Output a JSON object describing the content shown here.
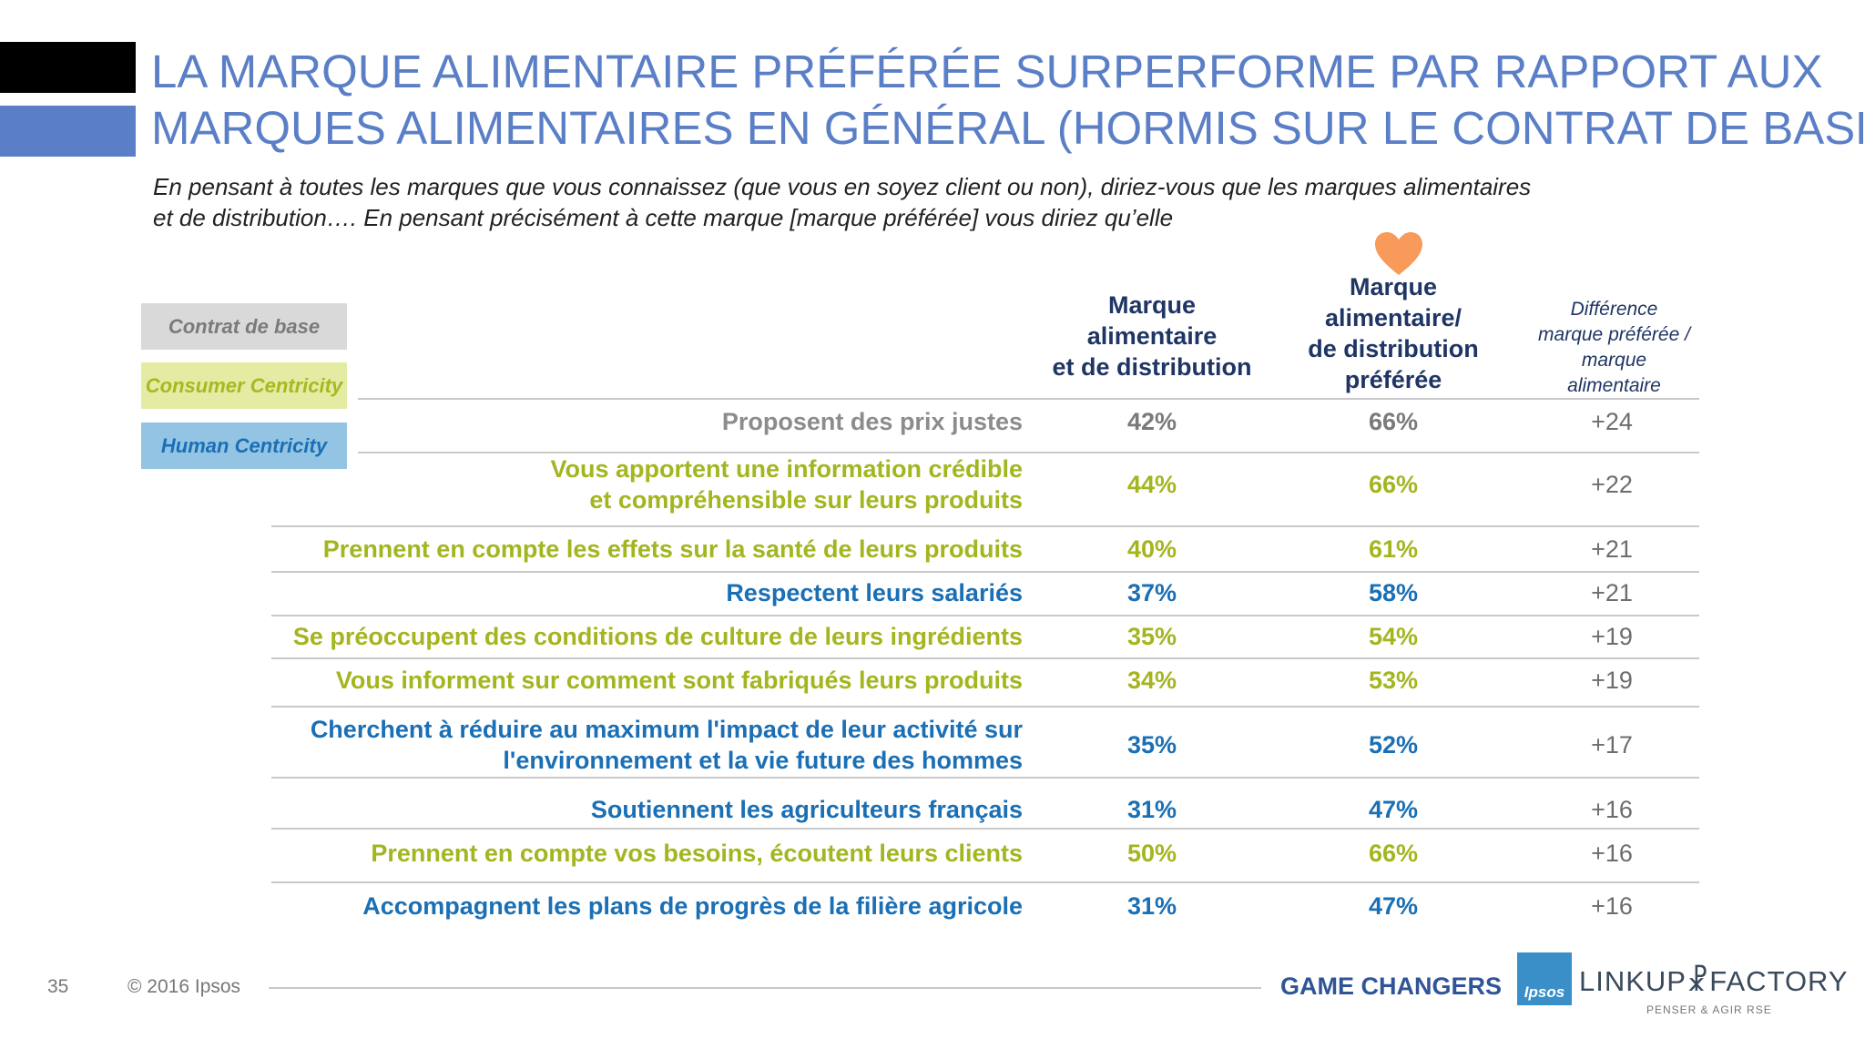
{
  "title_line1": "LA MARQUE ALIMENTAIRE PRÉFÉRÉE SURPERFORME PAR RAPPORT AUX",
  "title_line2": "MARQUES ALIMENTAIRES EN GÉNÉRAL (HORMIS SUR LE CONTRAT DE BASE)",
  "subtitle_line1": "En pensant à toutes les marques  que vous  connaissez (que vous en soyez client ou non), diriez-vous que les marques alimentaires",
  "subtitle_line2": "et de distribution….  En pensant précisément à cette marque [marque préférée]  vous diriez qu’elle",
  "legend": {
    "contrat": "Contrat de base",
    "consumer": "Consumer Centricity",
    "human": "Human Centricity"
  },
  "columns": {
    "c1_l1": "Marque",
    "c1_l2": "alimentaire",
    "c1_l3": "et de distribution",
    "c2_l1": "Marque",
    "c2_l2": "alimentaire/",
    "c2_l3": "de distribution",
    "c2_l4": "préférée",
    "c3_l1": "Différence",
    "c3_l2": "marque préférée /",
    "c3_l3": "marque",
    "c3_l4": "alimentaire"
  },
  "heart_icon": "heart-icon",
  "colors": {
    "title": "#5b7fc6",
    "green": "#a4b51f",
    "blue": "#1a6fb5",
    "gray": "#8c8c8c",
    "heart": "#f79a5a"
  },
  "rows": [
    {
      "l1": "Proposent des prix justes",
      "l2": "",
      "a": "42%",
      "b": "66%",
      "d": "+24",
      "cat": "contrat"
    },
    {
      "l1": "Vous apportent une information crédible",
      "l2": "et compréhensible sur leurs produits",
      "a": "44%",
      "b": "66%",
      "d": "+22",
      "cat": "consumer"
    },
    {
      "l1": "Prennent en compte les effets sur la santé de leurs produits",
      "l2": "",
      "a": "40%",
      "b": "61%",
      "d": "+21",
      "cat": "consumer"
    },
    {
      "l1": "Respectent leurs salariés",
      "l2": "",
      "a": "37%",
      "b": "58%",
      "d": "+21",
      "cat": "human"
    },
    {
      "l1": "Se préoccupent des conditions de culture de leurs ingrédients",
      "l2": "",
      "a": "35%",
      "b": "54%",
      "d": "+19",
      "cat": "consumer"
    },
    {
      "l1": "Vous informent sur comment sont fabriqués leurs produits",
      "l2": "",
      "a": "34%",
      "b": "53%",
      "d": "+19",
      "cat": "consumer"
    },
    {
      "l1": "Cherchent à réduire au maximum l'impact de leur activité sur",
      "l2": "l'environnement et la vie future des hommes",
      "a": "35%",
      "b": "52%",
      "d": "+17",
      "cat": "human"
    },
    {
      "l1": "Soutiennent les agriculteurs français",
      "l2": "",
      "a": "31%",
      "b": "47%",
      "d": "+16",
      "cat": "human"
    },
    {
      "l1": "Prennent en compte vos besoins, écoutent leurs clients",
      "l2": "",
      "a": "50%",
      "b": "66%",
      "d": "+16",
      "cat": "consumer"
    },
    {
      "l1": "Accompagnent les plans de progrès de la filière agricole",
      "l2": "",
      "a": "31%",
      "b": "47%",
      "d": "+16",
      "cat": "human"
    }
  ],
  "footer": {
    "page": "35",
    "copyright": "© 2016 Ipsos",
    "game_changers": "GAME CHANGERS",
    "ipsos": "Ipsos",
    "linkup": "LINKUP",
    "factory": "FACTORY",
    "linkup_sub": "PENSER & AGIR RSE"
  }
}
